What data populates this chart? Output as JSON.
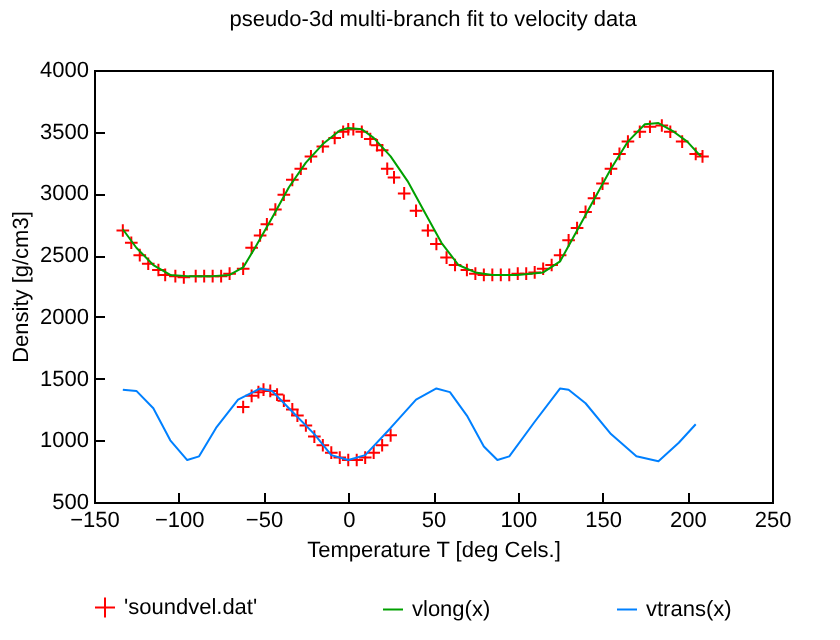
{
  "chart_data": {
    "type": "scatter",
    "title": "pseudo-3d multi-branch fit to velocity data",
    "xlabel": "Temperature T   [deg Cels.]",
    "ylabel": "Density [g/cm3]",
    "xlim": [
      -150,
      250
    ],
    "xticks": [
      -150,
      -100,
      -50,
      0,
      50,
      100,
      150,
      200,
      250
    ],
    "ylim": [
      500,
      4000
    ],
    "yticks": [
      500,
      1000,
      1500,
      2000,
      2500,
      3000,
      3500,
      4000
    ],
    "grid": false,
    "legend": "bottom",
    "series": [
      {
        "name": "'soundvel.dat'",
        "marker": "cross",
        "color": "#ff0000",
        "x": [
          -133,
          -128,
          -123,
          -118,
          -112,
          -108,
          -102,
          -97,
          -90,
          -85,
          -80,
          -75,
          -70,
          -62,
          -57,
          -52,
          -48,
          -43,
          -38,
          -33,
          -28,
          -22,
          -15,
          -8,
          -3,
          0,
          3,
          8,
          13,
          17,
          20,
          23,
          27,
          33,
          40,
          47,
          52,
          58,
          63,
          70,
          75,
          80,
          85,
          90,
          95,
          100,
          105,
          110,
          115,
          120,
          125,
          130,
          135,
          140,
          145,
          150,
          155,
          160,
          165,
          172,
          178,
          185,
          190,
          197,
          205,
          209,
          -62,
          -57,
          -53,
          -50,
          -46,
          -42,
          -38,
          -33,
          -30,
          -25,
          -20,
          -15,
          -10,
          -5,
          0,
          5,
          10,
          15,
          20,
          25
        ],
        "values": [
          2700,
          2600,
          2500,
          2430,
          2380,
          2340,
          2330,
          2320,
          2330,
          2330,
          2330,
          2330,
          2350,
          2390,
          2560,
          2660,
          2750,
          2870,
          2990,
          3110,
          3200,
          3300,
          3380,
          3450,
          3500,
          3520,
          3520,
          3500,
          3440,
          3390,
          3350,
          3200,
          3130,
          3000,
          2860,
          2700,
          2590,
          2480,
          2420,
          2380,
          2350,
          2340,
          2340,
          2340,
          2340,
          2350,
          2350,
          2360,
          2390,
          2420,
          2500,
          2620,
          2720,
          2850,
          2960,
          3080,
          3200,
          3320,
          3420,
          3500,
          3540,
          3550,
          3500,
          3420,
          3320,
          3300,
          1270,
          1360,
          1390,
          1410,
          1400,
          1370,
          1320,
          1250,
          1200,
          1120,
          1030,
          960,
          900,
          860,
          840,
          840,
          860,
          900,
          960,
          1040
        ]
      },
      {
        "name": "vlong(x)",
        "type": "line",
        "color": "#00a000",
        "x": [
          -133,
          -125,
          -115,
          -105,
          -95,
          -80,
          -70,
          -62,
          -55,
          -45,
          -35,
          -25,
          -15,
          -5,
          0,
          8,
          15,
          25,
          35,
          45,
          55,
          65,
          75,
          85,
          100,
          115,
          125,
          135,
          145,
          155,
          165,
          175,
          183,
          192,
          200,
          208
        ],
        "values": [
          2710,
          2560,
          2420,
          2340,
          2330,
          2330,
          2340,
          2400,
          2560,
          2800,
          3050,
          3250,
          3400,
          3510,
          3530,
          3520,
          3450,
          3300,
          3100,
          2850,
          2600,
          2420,
          2360,
          2340,
          2340,
          2360,
          2450,
          2700,
          2950,
          3200,
          3420,
          3560,
          3570,
          3500,
          3420,
          3300
        ]
      },
      {
        "name": "vtrans(x)",
        "type": "line",
        "color": "#0080ff",
        "x": [
          -133,
          -125,
          -115,
          -105,
          -95,
          -88,
          -78,
          -65,
          -52,
          -45,
          -35,
          -20,
          -10,
          0,
          10,
          25,
          40,
          52,
          60,
          70,
          80,
          88,
          95,
          110,
          125,
          130,
          140,
          155,
          170,
          183,
          195,
          205
        ],
        "values": [
          1410,
          1400,
          1260,
          1000,
          840,
          870,
          1100,
          1330,
          1420,
          1400,
          1260,
          1050,
          880,
          840,
          880,
          1100,
          1330,
          1420,
          1390,
          1200,
          950,
          840,
          870,
          1150,
          1420,
          1410,
          1300,
          1050,
          870,
          830,
          980,
          1130
        ]
      }
    ]
  }
}
